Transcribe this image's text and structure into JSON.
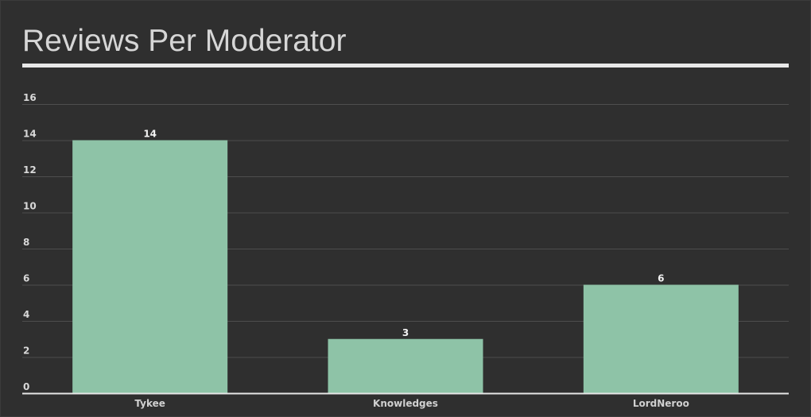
{
  "chart_data": {
    "type": "bar",
    "title": "Reviews Per Moderator",
    "categories": [
      "Tykee",
      "Knowledges",
      "LordNeroo"
    ],
    "values": [
      14,
      3,
      6
    ],
    "data_labels": [
      "14",
      "3",
      "6"
    ],
    "y_ticks": [
      "0",
      "2",
      "4",
      "6",
      "8",
      "10",
      "12",
      "14",
      "16"
    ],
    "ylim": [
      0,
      16
    ],
    "xlabel": "",
    "ylabel": "",
    "grid": true,
    "legend": "none",
    "colors": {
      "bar": "#8ec3a7",
      "background": "#2f2f2f",
      "grid": "#4e4e4e",
      "axis": "#e6e6e6"
    }
  }
}
